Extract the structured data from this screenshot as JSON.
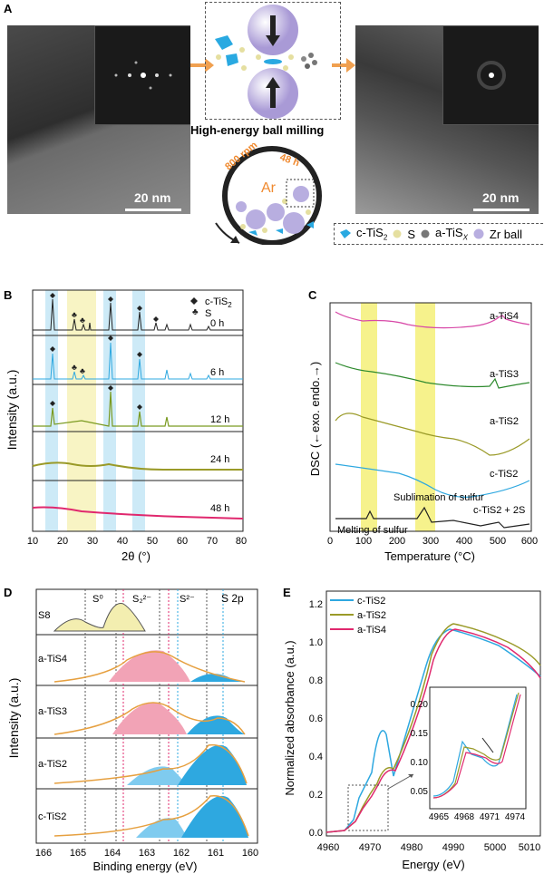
{
  "panelA": {
    "letter": "A",
    "scale_left": "20 nm",
    "scale_right": "20 nm",
    "ball_mill_title": "High-energy ball milling",
    "jar_speed": "800 rpm",
    "jar_time": "48 h",
    "jar_gas": "Ar",
    "legend": {
      "c_tis2": "c-TiS",
      "c_tis2_sub": "2",
      "s": "S",
      "a_tisx": "a-TiS",
      "a_tisx_sub": "X",
      "zr": "Zr ball"
    }
  },
  "panelB": {
    "letter": "B",
    "ylabel": "Intensity (a.u.)",
    "xlabel": "2θ (°)",
    "legend_ctis2": "c-TiS",
    "legend_ctis2_sub": "2",
    "legend_s": "S",
    "traces": [
      "0 h",
      "6 h",
      "12 h",
      "24 h",
      "48 h"
    ],
    "xticks": [
      "10",
      "20",
      "30",
      "40",
      "50",
      "60",
      "70",
      "80"
    ]
  },
  "panelC": {
    "letter": "C",
    "ylabel": "DSC (←exo.   endo.→)",
    "xlabel": "Temperature (°C)",
    "traces": [
      "a-TiS4",
      "a-TiS3",
      "a-TiS2",
      "c-TiS2",
      "c-TiS2 + 2S"
    ],
    "note_sublimation": "Sublimation of sulfur",
    "note_melting": "Melting of sulfur",
    "xticks": [
      "0",
      "100",
      "200",
      "300",
      "400",
      "500",
      "600"
    ]
  },
  "panelD": {
    "letter": "D",
    "ylabel": "Intensity (a.u.)",
    "xlabel": "Binding energy (eV)",
    "region_s0": "S⁰",
    "region_s22": "S₂²⁻",
    "region_s2": "S²⁻",
    "label_s2p": "S 2p",
    "traces": [
      "S8",
      "a-TiS4",
      "a-TiS3",
      "a-TiS2",
      "c-TiS2"
    ],
    "xticks": [
      "166",
      "165",
      "164",
      "163",
      "162",
      "161",
      "160"
    ]
  },
  "panelE": {
    "letter": "E",
    "ylabel": "Normalized absorbance (a.u.)",
    "xlabel": "Energy (eV)",
    "legend": [
      "c-TiS2",
      "a-TiS2",
      "a-TiS4"
    ],
    "colors": {
      "c": "#2ea8e0",
      "a2": "#9a9a28",
      "a4": "#e0286e"
    },
    "yticks": [
      "0.0",
      "0.2",
      "0.4",
      "0.6",
      "0.8",
      "1.0",
      "1.2"
    ],
    "xticks": [
      "4960",
      "4970",
      "4980",
      "4990",
      "5000",
      "5010"
    ],
    "inset_yticks": [
      "0.05",
      "0.10",
      "0.15",
      "0.20"
    ],
    "inset_xticks": [
      "4965",
      "4968",
      "4971",
      "4974"
    ]
  }
}
